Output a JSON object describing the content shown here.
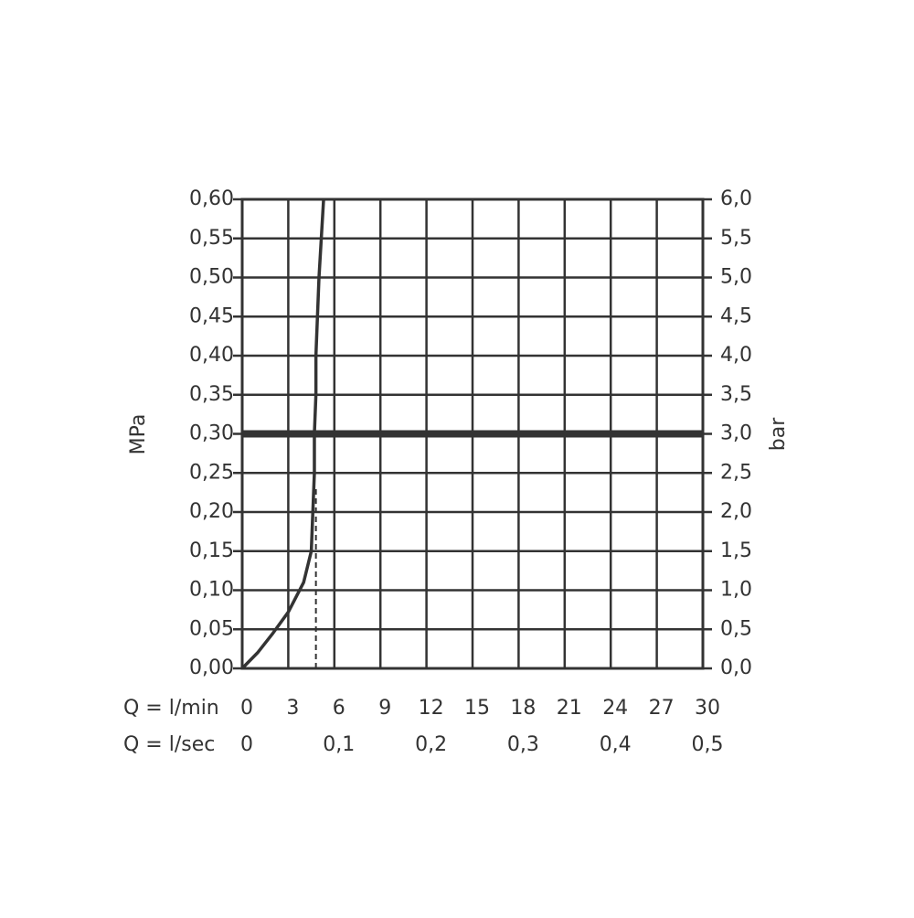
{
  "chart_data": {
    "type": "line",
    "ylabel": "MPa",
    "y2label": "bar",
    "xlabel": "Q = l/min",
    "x2label": "Q = l/sec",
    "xlim": [
      0,
      30
    ],
    "xticks": [
      0,
      3,
      6,
      9,
      12,
      15,
      18,
      21,
      24,
      27,
      30
    ],
    "x2lim": [
      0,
      0.5
    ],
    "x2ticks": [
      0,
      {
        "value": 0.1,
        "label": "0,1"
      },
      {
        "value": 0.2,
        "label": "0,2"
      },
      {
        "value": 0.3,
        "label": "0,3"
      },
      {
        "value": 0.4,
        "label": "0,4"
      },
      {
        "value": 0.5,
        "label": "0,5"
      }
    ],
    "ylim": [
      0,
      0.6
    ],
    "yticks": [
      {
        "value": 0,
        "label": "0,00"
      },
      {
        "value": 0.05,
        "label": "0,05"
      },
      {
        "value": 0.1,
        "label": "0,10"
      },
      {
        "value": 0.15,
        "label": "0,15"
      },
      {
        "value": 0.2,
        "label": "0,20"
      },
      {
        "value": 0.25,
        "label": "0,25"
      },
      {
        "value": 0.3,
        "label": "0,30"
      },
      {
        "value": 0.35,
        "label": "0,35"
      },
      {
        "value": 0.4,
        "label": "0,40"
      },
      {
        "value": 0.45,
        "label": "0,45"
      },
      {
        "value": 0.5,
        "label": "0,50"
      },
      {
        "value": 0.55,
        "label": "0,55"
      },
      {
        "value": 0.6,
        "label": "0,60"
      }
    ],
    "y2lim": [
      0,
      6
    ],
    "y2ticks": [
      {
        "value": 0,
        "label": "0,0"
      },
      {
        "value": 0.5,
        "label": "0,5"
      },
      {
        "value": 1,
        "label": "1,0"
      },
      {
        "value": 1.5,
        "label": "1,5"
      },
      {
        "value": 2,
        "label": "2,0"
      },
      {
        "value": 2.5,
        "label": "2,5"
      },
      {
        "value": 3,
        "label": "3,0"
      },
      {
        "value": 3.5,
        "label": "3,5"
      },
      {
        "value": 4,
        "label": "4,0"
      },
      {
        "value": 4.5,
        "label": "4,5"
      },
      {
        "value": 5,
        "label": "5,0"
      },
      {
        "value": 5.5,
        "label": "5,5"
      },
      {
        "value": 6,
        "label": "6,0"
      }
    ],
    "grid": true,
    "x": [
      0,
      1,
      2,
      3,
      4,
      4.5,
      4.7,
      4.7,
      4.8,
      4.8,
      5.0,
      5.3
    ],
    "series": [
      {
        "color": "#333333",
        "values": [
          0,
          0.02,
          0.045,
          0.072,
          0.11,
          0.15,
          0.25,
          0.3,
          0.35,
          0.4,
          0.5,
          0.6
        ]
      }
    ],
    "vline": {
      "x": 4.8,
      "ylim": [
        0,
        0.23
      ],
      "style": "dashed"
    },
    "hline": {
      "y": 0.3
    }
  }
}
